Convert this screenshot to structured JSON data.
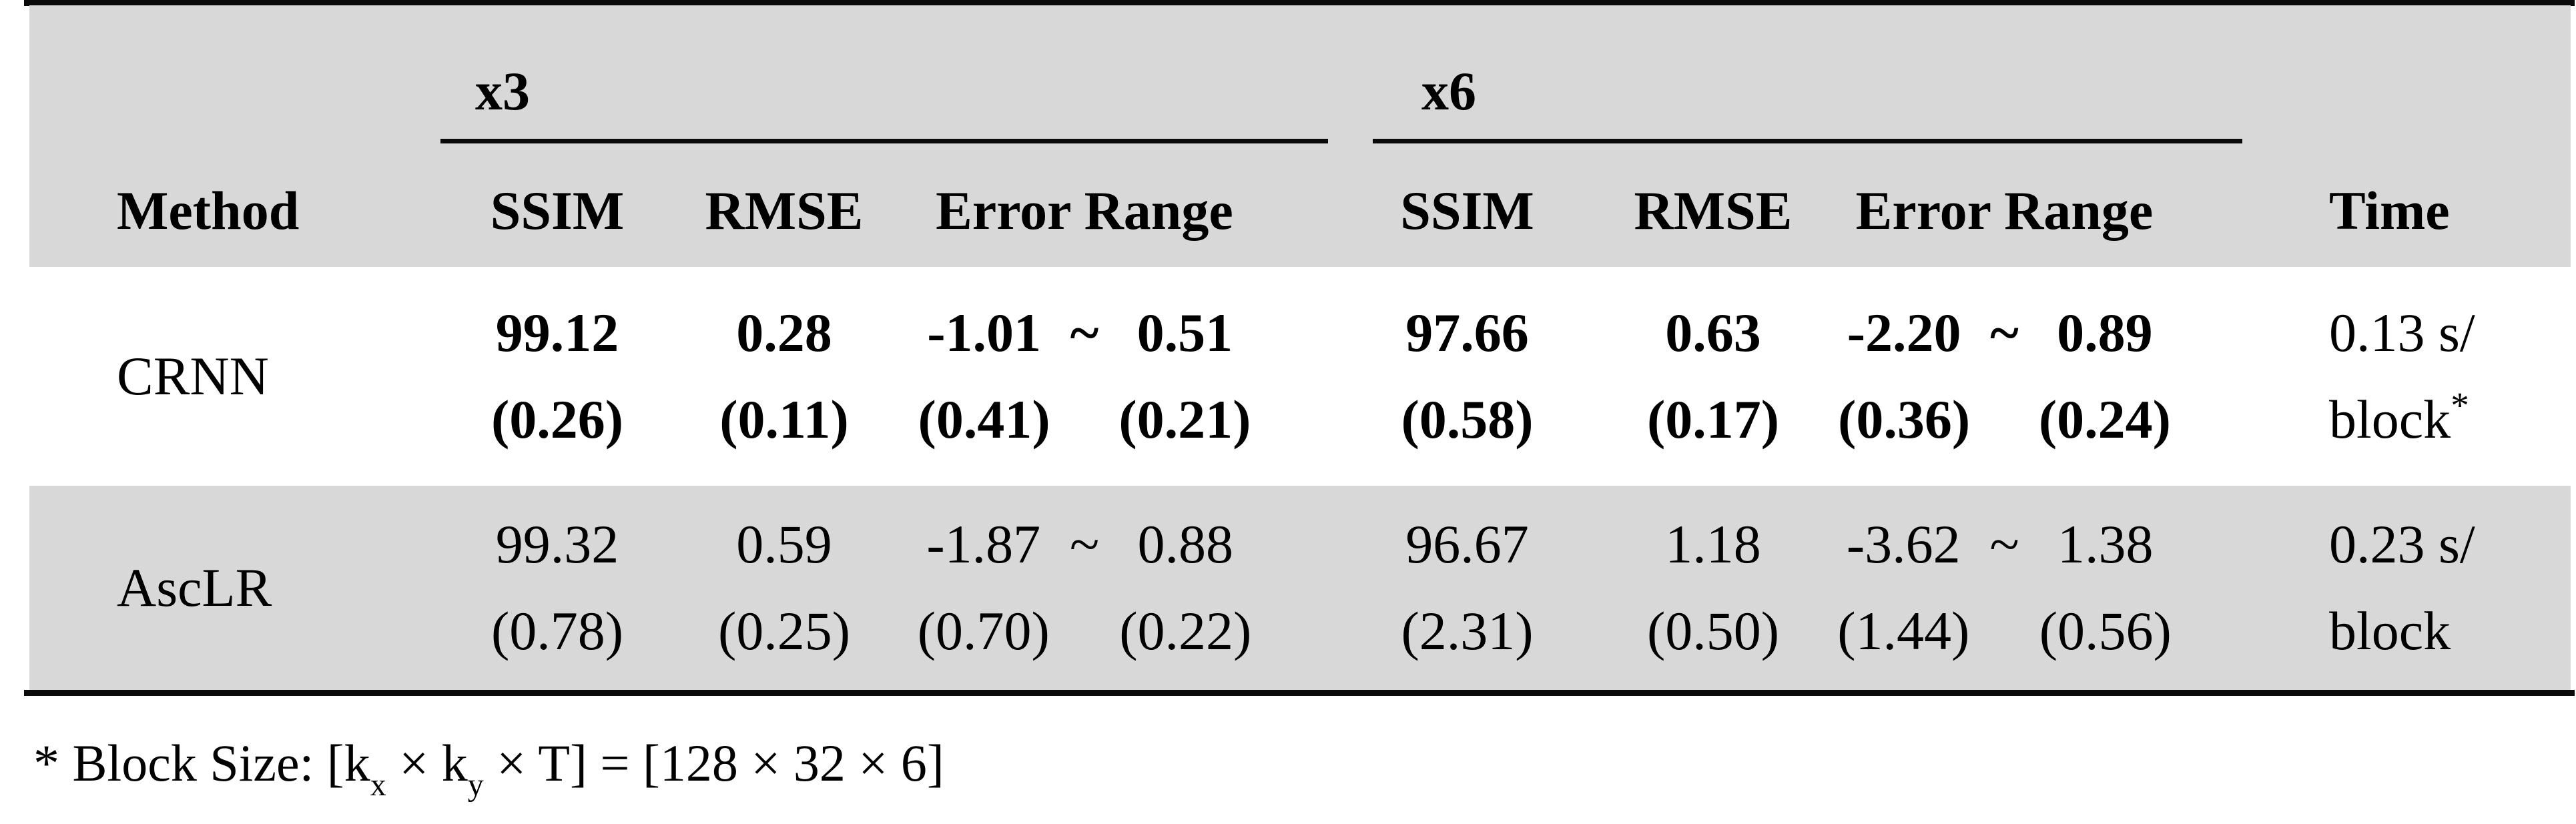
{
  "table": {
    "headers": {
      "method": "Method",
      "group_x3": "x3",
      "group_x6": "x6",
      "ssim": "SSIM",
      "rmse": "RMSE",
      "error_range": "Error Range",
      "time": "Time"
    },
    "tilde": "~",
    "rows": [
      {
        "method": "CRNN",
        "x3": {
          "ssim": "99.12",
          "ssim_sd": "(0.26)",
          "rmse": "0.28",
          "rmse_sd": "(0.11)",
          "err_lo": "-1.01",
          "err_lo_sd": "(0.41)",
          "err_hi": "0.51",
          "err_hi_sd": "(0.21)"
        },
        "x6": {
          "ssim": "97.66",
          "ssim_sd": "(0.58)",
          "rmse": "0.63",
          "rmse_sd": "(0.17)",
          "err_lo": "-2.20",
          "err_lo_sd": "(0.36)",
          "err_hi": "0.89",
          "err_hi_sd": "(0.24)"
        },
        "time_line1": "0.13 s/",
        "time_line2": "block",
        "time_marker": "*"
      },
      {
        "method": "AscLR",
        "x3": {
          "ssim": "99.32",
          "ssim_sd": "(0.78)",
          "rmse": "0.59",
          "rmse_sd": "(0.25)",
          "err_lo": "-1.87",
          "err_lo_sd": "(0.70)",
          "err_hi": "0.88",
          "err_hi_sd": "(0.22)"
        },
        "x6": {
          "ssim": "96.67",
          "ssim_sd": "(2.31)",
          "rmse": "1.18",
          "rmse_sd": "(0.50)",
          "err_lo": "-3.62",
          "err_lo_sd": "(1.44)",
          "err_hi": "1.38",
          "err_hi_sd": "(0.56)"
        },
        "time_line1": "0.23 s/",
        "time_line2": "block",
        "time_marker": ""
      }
    ],
    "footnote": {
      "marker": "* ",
      "text_1": "Block Size: [k",
      "sub_1": "x",
      "text_2": " × k",
      "sub_2": "y",
      "text_3": " × T] = [128 × 32 × 6]"
    },
    "colors": {
      "stripe_gray": "#d8d8d8",
      "rule_black": "#0a0a0a",
      "row_white": "#ffffff"
    }
  }
}
